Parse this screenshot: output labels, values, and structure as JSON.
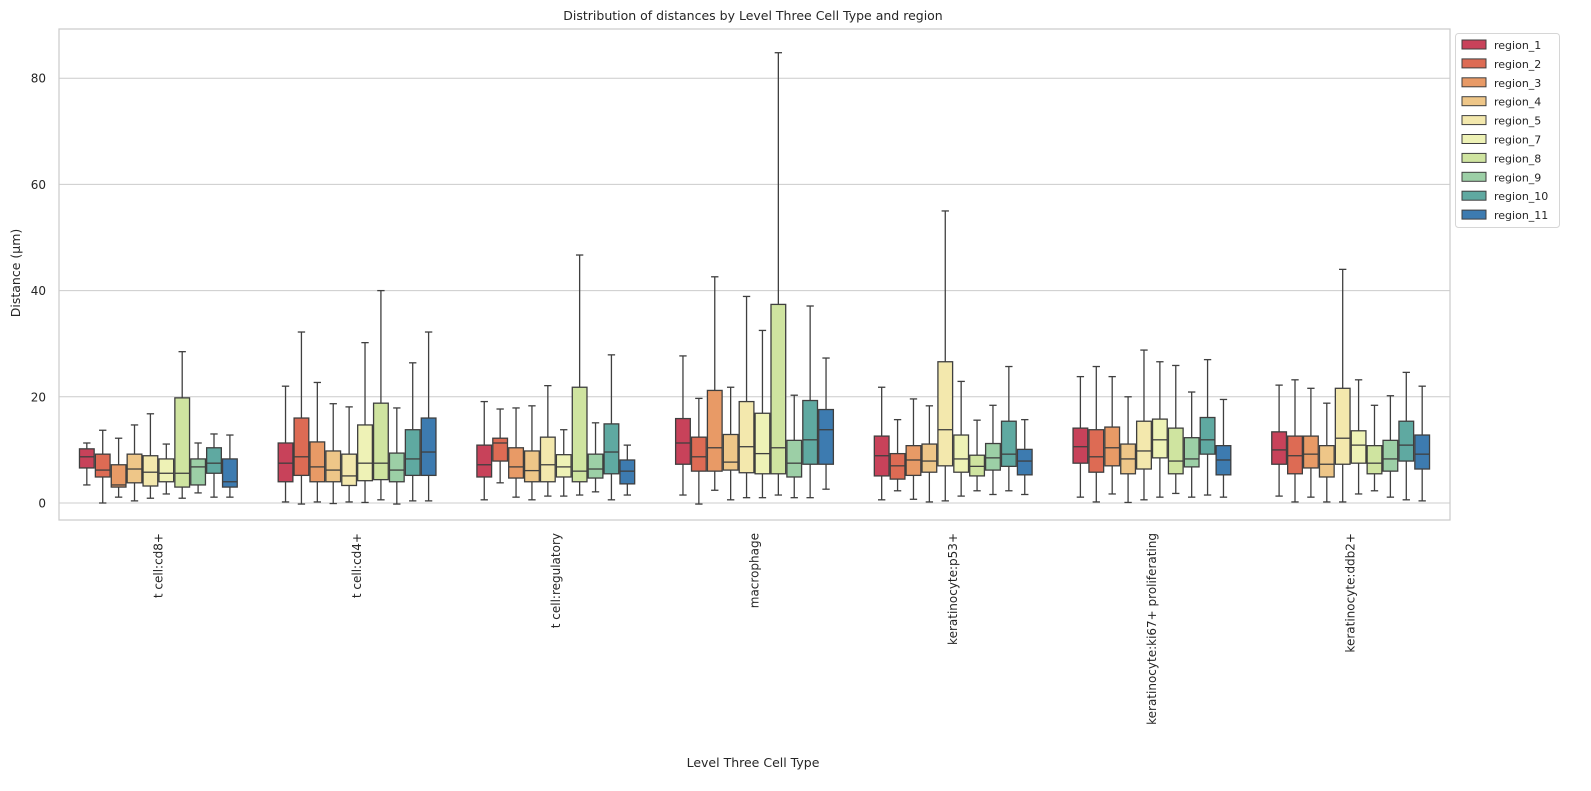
{
  "chart_data": {
    "type": "box",
    "title": "Distribution of distances by Level Three Cell Type and region",
    "xlabel": "Level Three Cell Type",
    "ylabel": "Distance (µm)",
    "ylim": [
      -4,
      89
    ],
    "yticks": [
      0,
      20,
      40,
      60,
      80
    ],
    "grid": true,
    "legend_position": "outside-top-right",
    "categories": [
      "t cell:cd8+",
      "t cell:cd4+",
      "t cell:regulatory",
      "macrophage",
      "keratinocyte:p53+",
      "keratinocyte:ki67+ proliferating",
      "keratinocyte:ddb2+"
    ],
    "series": [
      {
        "name": "region_1",
        "color": "#c8425a"
      },
      {
        "name": "region_2",
        "color": "#dd6b54"
      },
      {
        "name": "region_3",
        "color": "#e89a66"
      },
      {
        "name": "region_4",
        "color": "#eec688"
      },
      {
        "name": "region_5",
        "color": "#f3e8ad"
      },
      {
        "name": "region_7",
        "color": "#eef2b6"
      },
      {
        "name": "region_8",
        "color": "#cfe4a0"
      },
      {
        "name": "region_9",
        "color": "#9ccfa6"
      },
      {
        "name": "region_10",
        "color": "#5fa9a1"
      },
      {
        "name": "region_11",
        "color": "#3d7bb0"
      }
    ],
    "boxes_note": "each entry: [whisker_low, q1, median, q3, whisker_high] per region in series order",
    "boxes": [
      [
        [
          3.4,
          6.6,
          8.7,
          10.2,
          11.3
        ],
        [
          0,
          4.9,
          6.2,
          9.2,
          13.7
        ],
        [
          1.1,
          3.0,
          3.4,
          7.2,
          12.2
        ],
        [
          0.4,
          3.8,
          6.4,
          9.2,
          14.7
        ],
        [
          0.9,
          3.2,
          5.8,
          8.9,
          16.8
        ],
        [
          1.7,
          4.0,
          5.6,
          8.3,
          11.1
        ],
        [
          0.9,
          3.0,
          5.6,
          19.8,
          28.5
        ],
        [
          1.9,
          3.4,
          6.8,
          8.3,
          11.3
        ],
        [
          1.1,
          5.6,
          7.5,
          10.4,
          13.0
        ],
        [
          1.1,
          3.0,
          4.0,
          8.3,
          12.8
        ]
      ],
      [
        [
          0.2,
          4.0,
          7.5,
          11.3,
          22.0
        ],
        [
          -0.2,
          5.2,
          8.7,
          16.0,
          32.2
        ],
        [
          0.2,
          4.0,
          6.8,
          11.5,
          22.7
        ],
        [
          -0.1,
          4.0,
          6.2,
          9.8,
          18.7
        ],
        [
          0.2,
          3.3,
          5.1,
          9.2,
          18.1
        ],
        [
          0.1,
          4.2,
          7.5,
          14.7,
          30.2
        ],
        [
          0.6,
          4.4,
          7.5,
          18.8,
          40.0
        ],
        [
          -0.2,
          4.0,
          6.2,
          9.4,
          17.9
        ],
        [
          0.4,
          5.2,
          8.3,
          13.8,
          26.4
        ],
        [
          0.4,
          5.2,
          9.6,
          16.0,
          32.2
        ]
      ],
      [
        [
          0.6,
          4.9,
          7.2,
          10.9,
          19.1
        ],
        [
          3.8,
          7.9,
          11.3,
          12.2,
          17.7
        ],
        [
          1.1,
          4.7,
          6.8,
          10.4,
          17.9
        ],
        [
          0.6,
          4.0,
          6.1,
          9.8,
          18.3
        ],
        [
          1.3,
          4.0,
          7.2,
          12.4,
          22.1
        ],
        [
          1.3,
          4.9,
          6.8,
          9.1,
          13.8
        ],
        [
          1.5,
          4.0,
          6.0,
          21.8,
          46.7
        ],
        [
          2.1,
          4.7,
          6.4,
          9.2,
          15.1
        ],
        [
          0.6,
          5.5,
          9.6,
          14.9,
          27.9
        ],
        [
          1.5,
          3.6,
          6.0,
          8.1,
          10.9
        ]
      ],
      [
        [
          1.5,
          7.3,
          11.3,
          15.9,
          27.7
        ],
        [
          -0.2,
          6.0,
          8.7,
          12.4,
          19.7
        ],
        [
          2.4,
          6.0,
          10.4,
          21.2,
          42.6
        ],
        [
          0.6,
          6.2,
          7.7,
          12.9,
          21.8
        ],
        [
          1.0,
          5.7,
          10.6,
          19.1,
          38.9
        ],
        [
          1.0,
          5.5,
          9.3,
          16.9,
          32.5
        ],
        [
          1.5,
          5.5,
          10.4,
          37.4,
          84.8
        ],
        [
          1.0,
          4.9,
          7.5,
          11.8,
          20.3
        ],
        [
          1.0,
          7.3,
          11.9,
          19.3,
          37.1
        ],
        [
          2.6,
          7.3,
          13.8,
          17.6,
          27.3
        ]
      ],
      [
        [
          0.6,
          5.1,
          8.9,
          12.6,
          21.8
        ],
        [
          2.3,
          4.5,
          7.0,
          9.3,
          15.7
        ],
        [
          0.7,
          5.2,
          8.1,
          10.8,
          19.6
        ],
        [
          0.2,
          5.8,
          7.9,
          11.1,
          18.3
        ],
        [
          0.4,
          7.0,
          13.8,
          26.6,
          55.0
        ],
        [
          1.3,
          5.8,
          8.3,
          12.8,
          22.9
        ],
        [
          2.3,
          5.1,
          6.9,
          9.0,
          15.6
        ],
        [
          1.6,
          6.2,
          8.5,
          11.2,
          18.4
        ],
        [
          2.3,
          6.9,
          9.2,
          15.4,
          25.7
        ],
        [
          1.6,
          5.3,
          7.9,
          10.1,
          15.7
        ]
      ],
      [
        [
          1.1,
          7.5,
          10.6,
          14.1,
          23.8
        ],
        [
          0.2,
          5.8,
          8.7,
          13.8,
          25.7
        ],
        [
          1.7,
          7.0,
          10.4,
          14.3,
          23.8
        ],
        [
          0.1,
          5.5,
          8.3,
          11.1,
          20.0
        ],
        [
          0.6,
          6.4,
          9.8,
          15.4,
          28.8
        ],
        [
          1.1,
          8.5,
          11.9,
          15.8,
          26.6
        ],
        [
          1.8,
          5.5,
          7.9,
          14.1,
          25.9
        ],
        [
          1.1,
          6.8,
          8.3,
          12.3,
          20.9
        ],
        [
          1.5,
          9.2,
          11.9,
          16.1,
          27.0
        ],
        [
          1.1,
          5.3,
          8.1,
          10.8,
          19.5
        ]
      ],
      [
        [
          1.3,
          7.3,
          10.0,
          13.4,
          22.2
        ],
        [
          0.2,
          5.5,
          8.9,
          12.6,
          23.2
        ],
        [
          1.1,
          6.6,
          9.2,
          12.6,
          21.6
        ],
        [
          0.2,
          4.9,
          7.3,
          10.8,
          18.8
        ],
        [
          0.2,
          7.3,
          12.2,
          21.6,
          44.0
        ],
        [
          1.7,
          7.5,
          10.9,
          13.6,
          23.2
        ],
        [
          2.3,
          5.5,
          7.5,
          10.8,
          18.4
        ],
        [
          1.1,
          6.0,
          8.3,
          11.8,
          20.2
        ],
        [
          0.6,
          7.9,
          10.9,
          15.4,
          24.6
        ],
        [
          0.4,
          6.4,
          9.2,
          12.8,
          22.0
        ]
      ]
    ]
  }
}
